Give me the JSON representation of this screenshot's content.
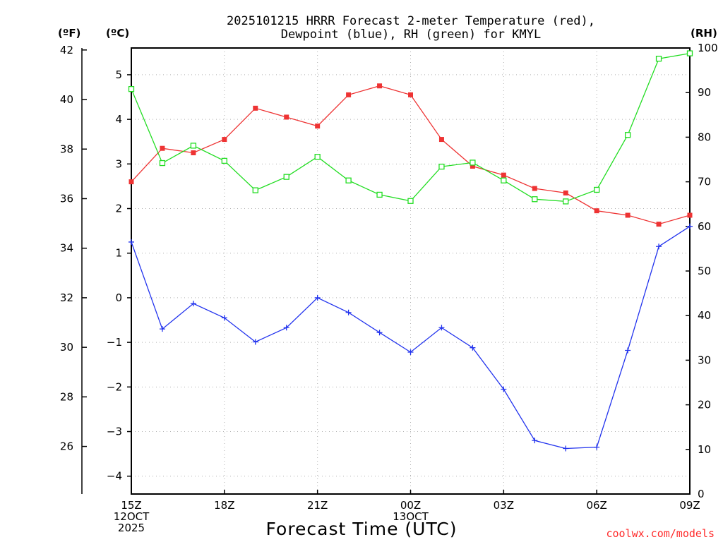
{
  "chart_data": {
    "type": "line",
    "title_line1": "2025101215 HRRR Forecast 2-meter Temperature (red),",
    "title_line2": "Dewpoint (blue), RH (green) for KMYL",
    "unit_f": "(ºF)",
    "unit_c": "(ºC)",
    "unit_rh": "(RH)",
    "xlabel": "Forecast Time (UTC)",
    "credit": "coolwx.com/models",
    "hours": [
      0,
      1,
      2,
      3,
      4,
      5,
      6,
      7,
      8,
      9,
      10,
      11,
      12,
      13,
      14,
      15,
      16,
      17,
      18
    ],
    "x_ticks": [
      {
        "hour": 0,
        "lines": [
          "15Z",
          "12OCT",
          "2025"
        ]
      },
      {
        "hour": 3,
        "lines": [
          "18Z"
        ]
      },
      {
        "hour": 6,
        "lines": [
          "21Z"
        ]
      },
      {
        "hour": 9,
        "lines": [
          "00Z",
          "13OCT"
        ]
      },
      {
        "hour": 12,
        "lines": [
          "03Z"
        ]
      },
      {
        "hour": 15,
        "lines": [
          "06Z"
        ]
      },
      {
        "hour": 18,
        "lines": [
          "09Z"
        ]
      }
    ],
    "c_ticks": [
      "5",
      "4",
      "3",
      "2",
      "1",
      "0",
      "−1",
      "−2",
      "−3",
      "−4"
    ],
    "c_tick_values": [
      5,
      4,
      3,
      2,
      1,
      0,
      -1,
      -2,
      -3,
      -4
    ],
    "f_ticks": [
      "42",
      "40",
      "38",
      "36",
      "34",
      "32",
      "30",
      "28",
      "26"
    ],
    "f_tick_values": [
      42,
      40,
      38,
      36,
      34,
      32,
      30,
      28,
      26
    ],
    "rh_ticks": [
      "100",
      "90",
      "80",
      "70",
      "60",
      "50",
      "40",
      "30",
      "20",
      "10",
      "0"
    ],
    "rh_tick_values": [
      100,
      90,
      80,
      70,
      60,
      50,
      40,
      30,
      20,
      10,
      0
    ],
    "c_range": [
      -4.4,
      5.6
    ],
    "rh_range": [
      0,
      100
    ],
    "series": [
      {
        "name": "Temperature",
        "unit": "C",
        "color": "#ee3333",
        "marker": "filled-square",
        "values": [
          2.6,
          3.35,
          3.25,
          3.55,
          4.25,
          4.05,
          3.85,
          4.55,
          4.75,
          4.55,
          3.55,
          2.95,
          2.75,
          2.45,
          2.35,
          1.95,
          1.85,
          1.65,
          1.85
        ]
      },
      {
        "name": "Dewpoint",
        "unit": "C",
        "color": "#2233ee",
        "marker": "plus",
        "values": [
          1.25,
          -0.7,
          -0.13,
          -0.45,
          -0.99,
          -0.67,
          0,
          -0.33,
          -0.78,
          -1.22,
          -0.67,
          -1.12,
          -2.05,
          -3.2,
          -3.38,
          -3.35,
          -1.18,
          1.15,
          1.6
        ]
      },
      {
        "name": "RH",
        "unit": "%",
        "color": "#22dd22",
        "marker": "open-square",
        "values": [
          90.8,
          74.2,
          78.1,
          74.7,
          68.1,
          71.1,
          75.6,
          70.3,
          67.1,
          65.7,
          73.4,
          74.3,
          70.3,
          66.1,
          65.6,
          68.2,
          80.5,
          97.6,
          98.8
        ]
      }
    ]
  }
}
